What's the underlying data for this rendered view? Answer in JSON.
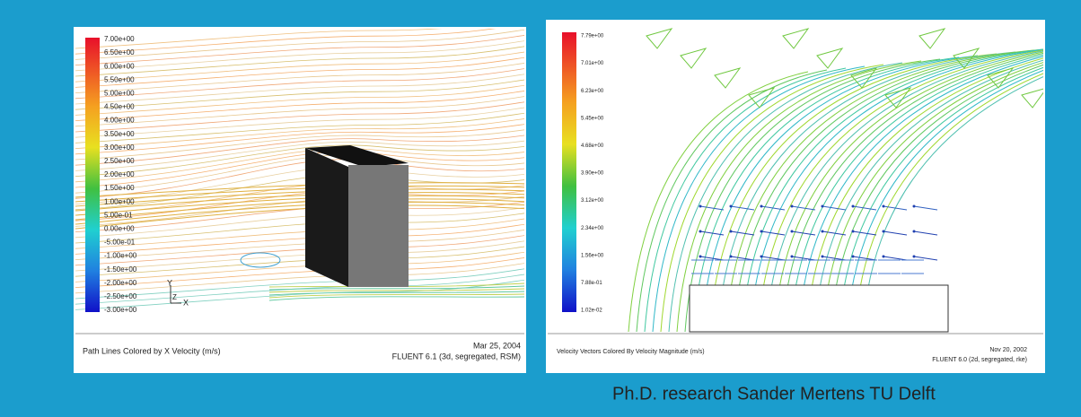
{
  "left_panel": {
    "colorbar_labels": [
      "7.00e+00",
      "6.50e+00",
      "6.00e+00",
      "5.50e+00",
      "5.00e+00",
      "4.50e+00",
      "4.00e+00",
      "3.50e+00",
      "3.00e+00",
      "2.50e+00",
      "2.00e+00",
      "1.50e+00",
      "1.00e+00",
      "5.00e-01",
      "0.00e+00",
      "-5.00e-01",
      "-1.00e+00",
      "-1.50e+00",
      "-2.00e+00",
      "-2.50e+00",
      "-3.00e+00"
    ],
    "axis_labels": [
      "Y",
      "Z",
      "X"
    ],
    "caption": "Path Lines Colored by X Velocity (m/s)",
    "date": "Mar 25, 2004",
    "solver": "FLUENT 6.1 (3d, segregated, RSM)"
  },
  "right_panel": {
    "colorbar_labels": [
      "7.79e+00",
      "7.01e+00",
      "6.23e+00",
      "5.45e+00",
      "4.68e+00",
      "3.90e+00",
      "3.12e+00",
      "2.34e+00",
      "1.56e+00",
      "7.88e-01",
      "1.02e-02"
    ],
    "caption": "Velocity Vectors Colored By Velocity Magnitude (m/s)",
    "date": "Nov 20, 2002",
    "solver": "FLUENT 6.0 (2d, segregated, rke)"
  },
  "footer": "Ph.D. research Sander Mertens TU Delft"
}
